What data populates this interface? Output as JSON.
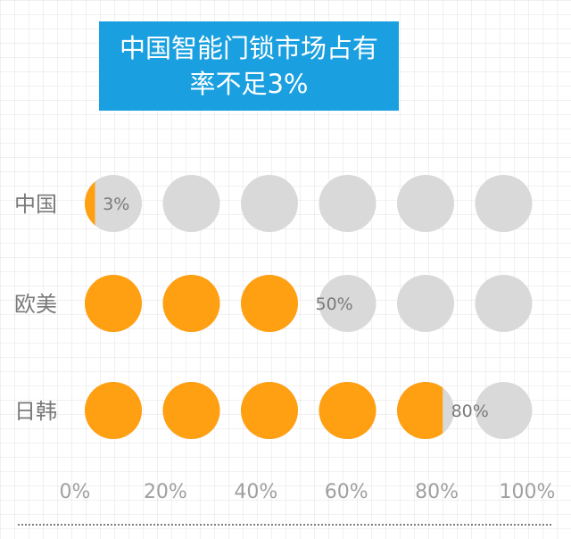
{
  "title": "中国智能门锁市场占有率不足3%",
  "colors": {
    "filled": "#ff9f12",
    "empty": "#d9d9d9",
    "title_bg": "#1aa0e0"
  },
  "chart_data": {
    "type": "bar",
    "subtype": "dot-matrix",
    "title": "中国智能门锁市场占有率不足3%",
    "categories": [
      "中国",
      "欧美",
      "日韩"
    ],
    "values": [
      3,
      50,
      80
    ],
    "value_labels": [
      "3%",
      "50%",
      "80%"
    ],
    "x_ticks": [
      "0%",
      "20%",
      "40%",
      "60%",
      "80%",
      "100%"
    ],
    "xlim": [
      0,
      100
    ],
    "dots_per_row": 6,
    "unit": "%",
    "grid": true
  }
}
